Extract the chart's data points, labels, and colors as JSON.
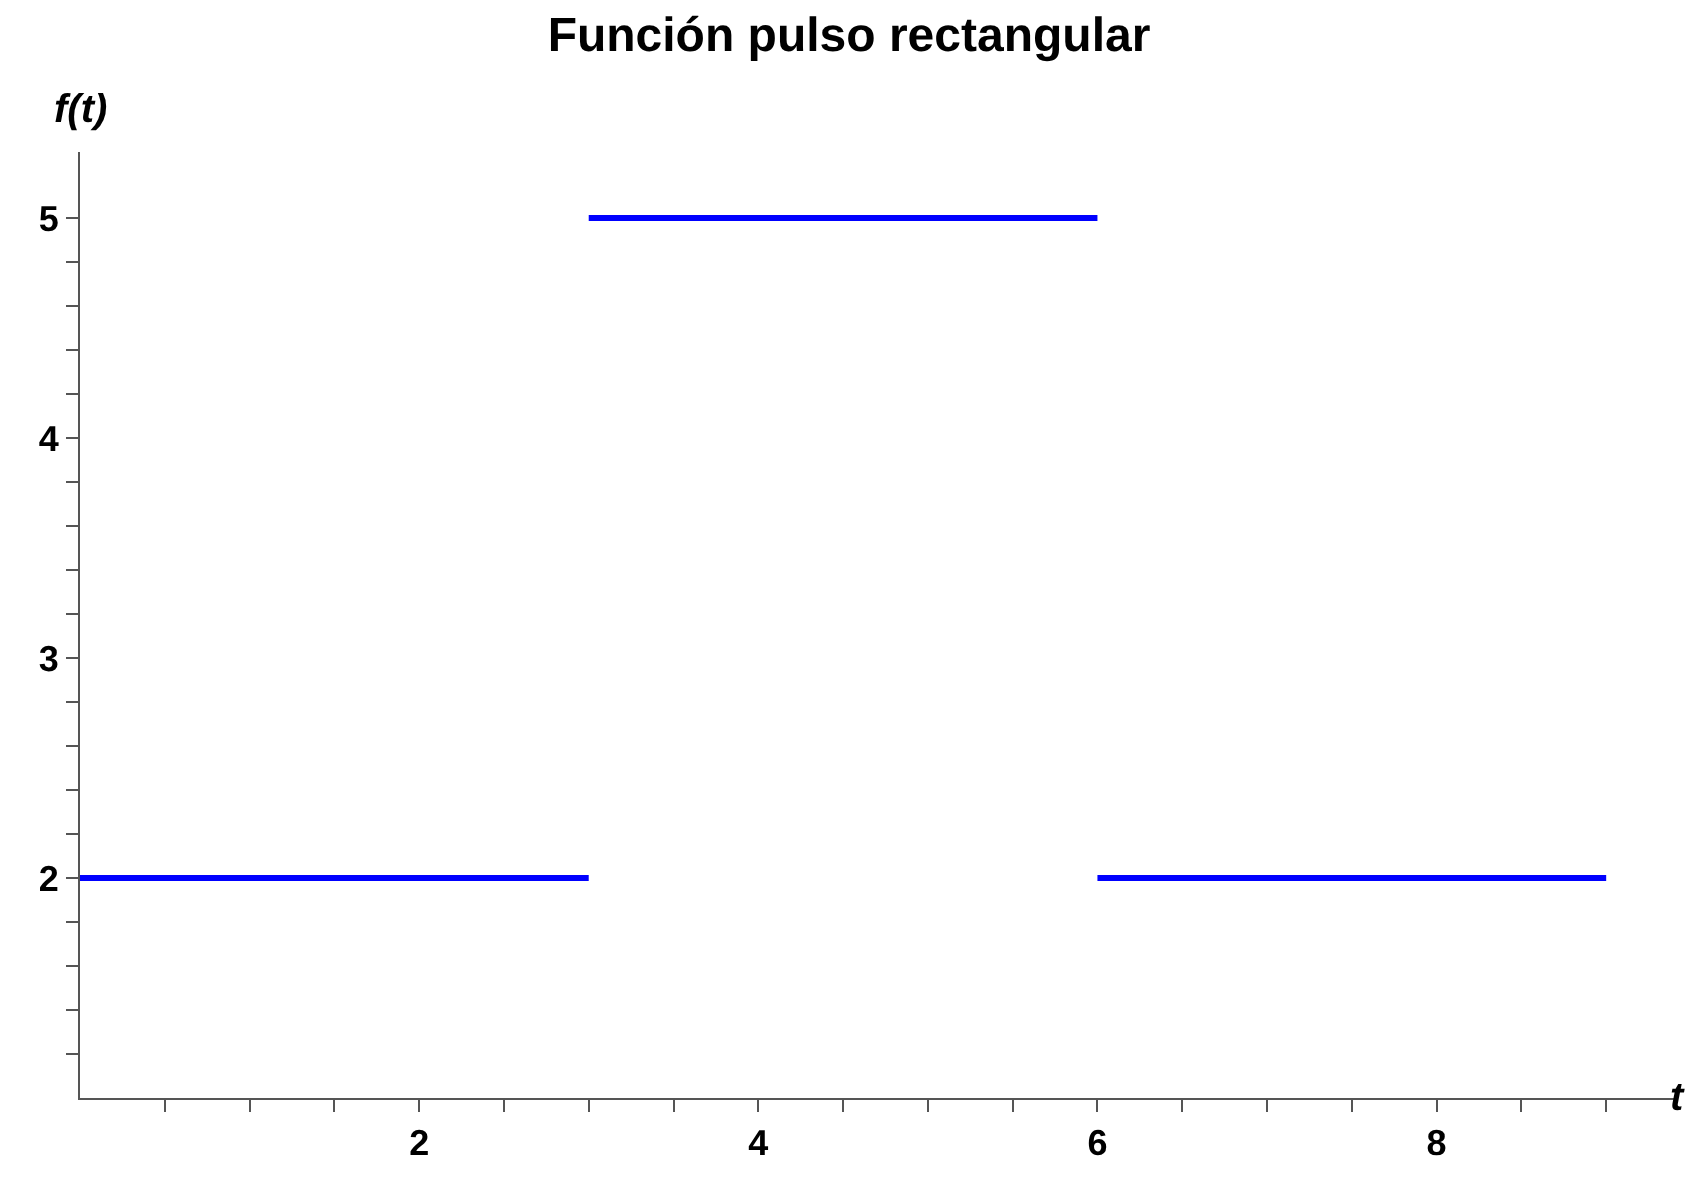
{
  "chart_data": {
    "type": "line",
    "title": "Función pulso rectangular",
    "xlabel": "t",
    "ylabel": "f(t)",
    "series": [
      {
        "color": "#0000ff",
        "x": [
          0,
          3
        ],
        "values": [
          2,
          2
        ]
      },
      {
        "color": "#0000ff",
        "x": [
          3,
          6
        ],
        "values": [
          5,
          5
        ]
      },
      {
        "color": "#0000ff",
        "x": [
          6,
          9
        ],
        "values": [
          2,
          2
        ]
      }
    ],
    "xlim": [
      0,
      9.4
    ],
    "ylim": [
      1,
      5.3
    ],
    "xticks": [
      {
        "value": 0.5,
        "label": null
      },
      {
        "value": 1,
        "label": null
      },
      {
        "value": 1.5,
        "label": null
      },
      2,
      {
        "value": 2.5,
        "label": null
      },
      {
        "value": 3,
        "label": null
      },
      {
        "value": 3.5,
        "label": null
      },
      4,
      {
        "value": 4.5,
        "label": null
      },
      {
        "value": 5,
        "label": null
      },
      {
        "value": 5.5,
        "label": null
      },
      6,
      {
        "value": 6.5,
        "label": null
      },
      {
        "value": 7,
        "label": null
      },
      {
        "value": 7.5,
        "label": null
      },
      8,
      {
        "value": 8.5,
        "label": null
      },
      {
        "value": 9,
        "label": null
      }
    ],
    "yticks": [
      {
        "value": 1.2,
        "label": null
      },
      {
        "value": 1.4,
        "label": null
      },
      {
        "value": 1.6,
        "label": null
      },
      {
        "value": 1.8,
        "label": null
      },
      2,
      {
        "value": 2.2,
        "label": null
      },
      {
        "value": 2.4,
        "label": null
      },
      {
        "value": 2.6,
        "label": null
      },
      {
        "value": 2.8,
        "label": null
      },
      3,
      {
        "value": 3.2,
        "label": null
      },
      {
        "value": 3.4,
        "label": null
      },
      {
        "value": 3.6,
        "label": null
      },
      {
        "value": 3.8,
        "label": null
      },
      4,
      {
        "value": 4.2,
        "label": null
      },
      {
        "value": 4.4,
        "label": null
      },
      {
        "value": 4.6,
        "label": null
      },
      {
        "value": 4.8,
        "label": null
      },
      5
    ],
    "marker": "none",
    "line_style": "solid"
  }
}
